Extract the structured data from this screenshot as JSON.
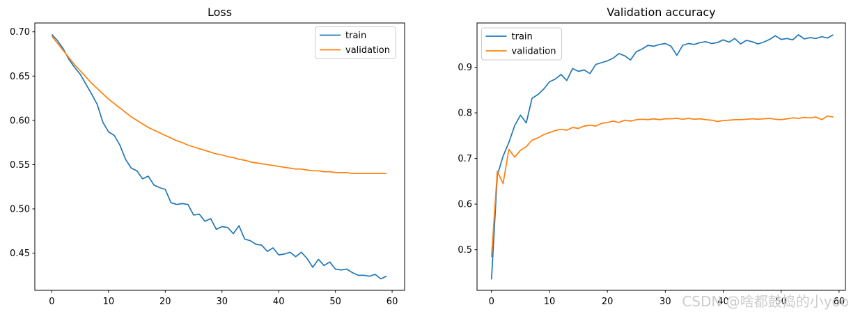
{
  "figure": {
    "background": "#ffffff",
    "watermark": {
      "text": "CSDN @啥都鼓捣的小yoo",
      "color": "#cbcbcb"
    }
  },
  "colors": {
    "train": "#1f77b4",
    "validation": "#ff7f0e"
  },
  "chart_data": [
    {
      "id": "loss",
      "type": "line",
      "title": "Loss",
      "xlabel": "",
      "ylabel": "",
      "grid": false,
      "legend_position": "upper right",
      "xlim": [
        -3.0,
        62.2
      ],
      "ylim": [
        0.408,
        0.71
      ],
      "xticks": [
        0,
        10,
        20,
        30,
        40,
        50,
        60
      ],
      "xtick_labels": [
        "0",
        "10",
        "20",
        "30",
        "40",
        "50",
        "60"
      ],
      "yticks": [
        0.45,
        0.5,
        0.55,
        0.6,
        0.65,
        0.7
      ],
      "ytick_labels": [
        "0.45",
        "0.50",
        "0.55",
        "0.60",
        "0.65",
        "0.70"
      ],
      "x": [
        0,
        1,
        2,
        3,
        4,
        5,
        6,
        7,
        8,
        9,
        10,
        11,
        12,
        13,
        14,
        15,
        16,
        17,
        18,
        19,
        20,
        21,
        22,
        23,
        24,
        25,
        26,
        27,
        28,
        29,
        30,
        31,
        32,
        33,
        34,
        35,
        36,
        37,
        38,
        39,
        40,
        41,
        42,
        43,
        44,
        45,
        46,
        47,
        48,
        49,
        50,
        51,
        52,
        53,
        54,
        55,
        56,
        57,
        58,
        59
      ],
      "series": [
        {
          "name": "train",
          "color": "#1f77b4",
          "values": [
            0.697,
            0.69,
            0.681,
            0.669,
            0.66,
            0.652,
            0.641,
            0.63,
            0.618,
            0.598,
            0.587,
            0.583,
            0.572,
            0.556,
            0.546,
            0.543,
            0.534,
            0.537,
            0.527,
            0.524,
            0.522,
            0.507,
            0.505,
            0.506,
            0.505,
            0.493,
            0.494,
            0.486,
            0.489,
            0.477,
            0.48,
            0.479,
            0.472,
            0.481,
            0.466,
            0.464,
            0.46,
            0.459,
            0.452,
            0.456,
            0.448,
            0.449,
            0.451,
            0.446,
            0.451,
            0.444,
            0.434,
            0.443,
            0.436,
            0.44,
            0.432,
            0.431,
            0.432,
            0.428,
            0.425,
            0.425,
            0.424,
            0.426,
            0.421,
            0.424
          ]
        },
        {
          "name": "validation",
          "color": "#ff7f0e",
          "values": [
            0.695,
            0.687,
            0.679,
            0.671,
            0.663,
            0.656,
            0.649,
            0.642,
            0.636,
            0.63,
            0.624,
            0.619,
            0.614,
            0.609,
            0.604,
            0.6,
            0.596,
            0.592,
            0.589,
            0.586,
            0.583,
            0.58,
            0.577,
            0.575,
            0.572,
            0.57,
            0.568,
            0.566,
            0.564,
            0.562,
            0.561,
            0.559,
            0.558,
            0.556,
            0.555,
            0.553,
            0.552,
            0.551,
            0.55,
            0.549,
            0.548,
            0.547,
            0.546,
            0.545,
            0.545,
            0.544,
            0.543,
            0.543,
            0.542,
            0.542,
            0.541,
            0.541,
            0.541,
            0.54,
            0.54,
            0.54,
            0.54,
            0.54,
            0.54,
            0.54
          ]
        }
      ]
    },
    {
      "id": "validation_accuracy",
      "type": "line",
      "title": "Validation accuracy",
      "xlabel": "",
      "ylabel": "",
      "grid": false,
      "legend_position": "upper left",
      "xlim": [
        -2.5,
        61.1
      ],
      "ylim": [
        0.411,
        0.997
      ],
      "xticks": [
        0,
        10,
        20,
        30,
        40,
        50,
        60
      ],
      "xtick_labels": [
        "0",
        "10",
        "20",
        "30",
        "40",
        "50",
        "60"
      ],
      "yticks": [
        0.5,
        0.6,
        0.7,
        0.8,
        0.9
      ],
      "ytick_labels": [
        "0.5",
        "0.6",
        "0.7",
        "0.8",
        "0.9"
      ],
      "x": [
        0,
        1,
        2,
        3,
        4,
        5,
        6,
        7,
        8,
        9,
        10,
        11,
        12,
        13,
        14,
        15,
        16,
        17,
        18,
        19,
        20,
        21,
        22,
        23,
        24,
        25,
        26,
        27,
        28,
        29,
        30,
        31,
        32,
        33,
        34,
        35,
        36,
        37,
        38,
        39,
        40,
        41,
        42,
        43,
        44,
        45,
        46,
        47,
        48,
        49,
        50,
        51,
        52,
        53,
        54,
        55,
        56,
        57,
        58,
        59
      ],
      "series": [
        {
          "name": "train",
          "color": "#1f77b4",
          "values": [
            0.435,
            0.663,
            0.705,
            0.735,
            0.772,
            0.795,
            0.778,
            0.832,
            0.84,
            0.852,
            0.868,
            0.874,
            0.884,
            0.871,
            0.897,
            0.891,
            0.894,
            0.886,
            0.906,
            0.91,
            0.914,
            0.92,
            0.93,
            0.925,
            0.916,
            0.934,
            0.94,
            0.948,
            0.946,
            0.95,
            0.952,
            0.946,
            0.926,
            0.948,
            0.952,
            0.95,
            0.954,
            0.956,
            0.952,
            0.954,
            0.96,
            0.955,
            0.963,
            0.951,
            0.959,
            0.956,
            0.951,
            0.955,
            0.961,
            0.969,
            0.961,
            0.963,
            0.96,
            0.971,
            0.962,
            0.965,
            0.963,
            0.967,
            0.964,
            0.971
          ]
        },
        {
          "name": "validation",
          "color": "#ff7f0e",
          "values": [
            0.484,
            0.672,
            0.645,
            0.72,
            0.703,
            0.718,
            0.726,
            0.74,
            0.745,
            0.752,
            0.757,
            0.761,
            0.764,
            0.762,
            0.768,
            0.766,
            0.771,
            0.773,
            0.771,
            0.777,
            0.779,
            0.782,
            0.779,
            0.784,
            0.782,
            0.785,
            0.786,
            0.785,
            0.787,
            0.785,
            0.787,
            0.787,
            0.788,
            0.786,
            0.788,
            0.786,
            0.787,
            0.785,
            0.784,
            0.781,
            0.783,
            0.784,
            0.785,
            0.785,
            0.786,
            0.787,
            0.786,
            0.787,
            0.788,
            0.786,
            0.785,
            0.787,
            0.789,
            0.788,
            0.79,
            0.789,
            0.791,
            0.785,
            0.793,
            0.791
          ]
        }
      ]
    }
  ]
}
